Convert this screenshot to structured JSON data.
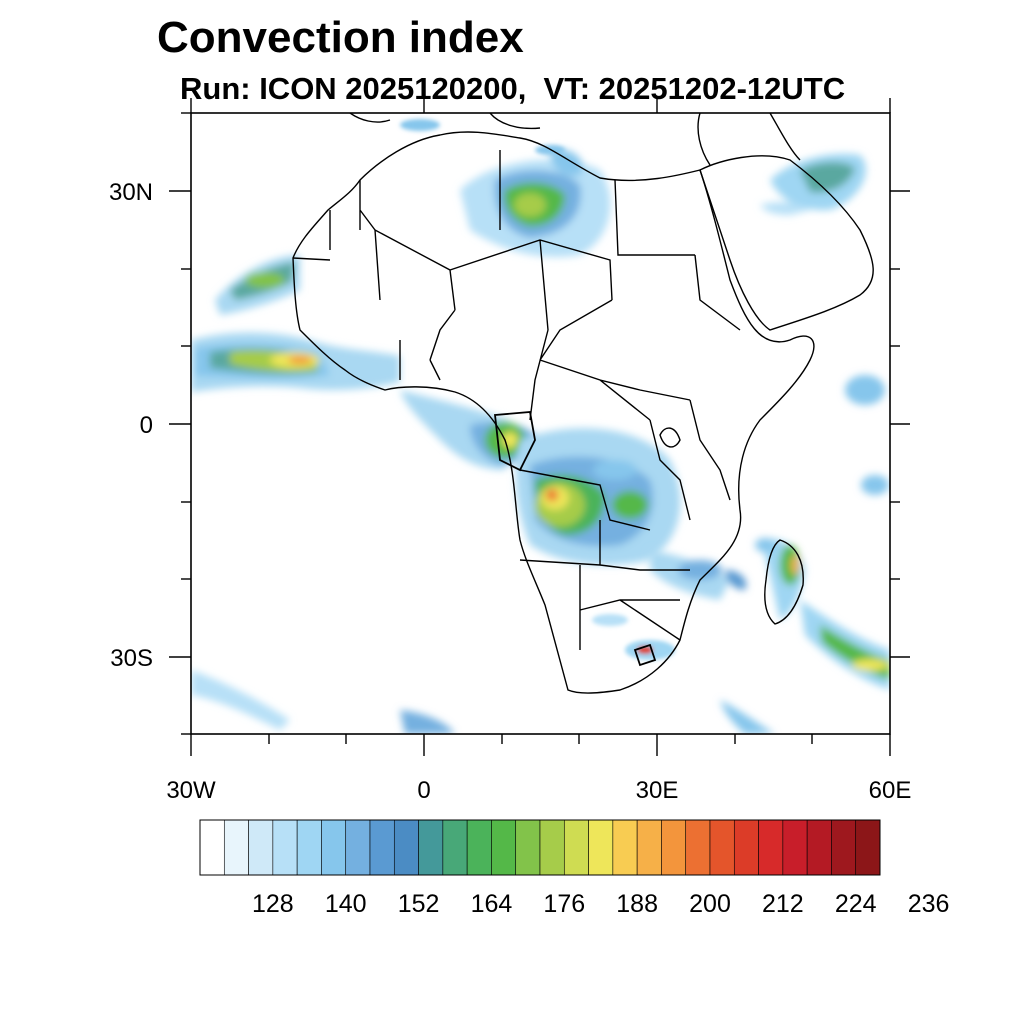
{
  "title": "Convection index",
  "subtitle": "Run: ICON 2025120200,  VT: 20251202-12UTC",
  "map": {
    "region": "Africa",
    "lon_range": [
      -30,
      60
    ],
    "lat_range": [
      -40,
      40
    ],
    "x_ticks": [
      "30W",
      "0",
      "30E",
      "60E"
    ],
    "y_ticks": [
      "30N",
      "0",
      "30S"
    ]
  },
  "colorbar": {
    "labels": [
      "128",
      "140",
      "152",
      "164",
      "176",
      "188",
      "200",
      "212",
      "224",
      "236"
    ],
    "colors": [
      "#ffffff",
      "#e8f5fc",
      "#cfe9f8",
      "#b7e0f7",
      "#9fd6f3",
      "#86c6ec",
      "#74b0e0",
      "#5a9ad2",
      "#4b8cc4",
      "#44999a",
      "#48a878",
      "#4bb35a",
      "#54b848",
      "#82c34a",
      "#a6cc4a",
      "#cfdc52",
      "#eee65a",
      "#f8cc52",
      "#f6b048",
      "#f3953c",
      "#ec7032",
      "#e4552b",
      "#dc3c28",
      "#d72a2a",
      "#c81e2a",
      "#b41a24",
      "#9e181e",
      "#8c1618"
    ]
  }
}
